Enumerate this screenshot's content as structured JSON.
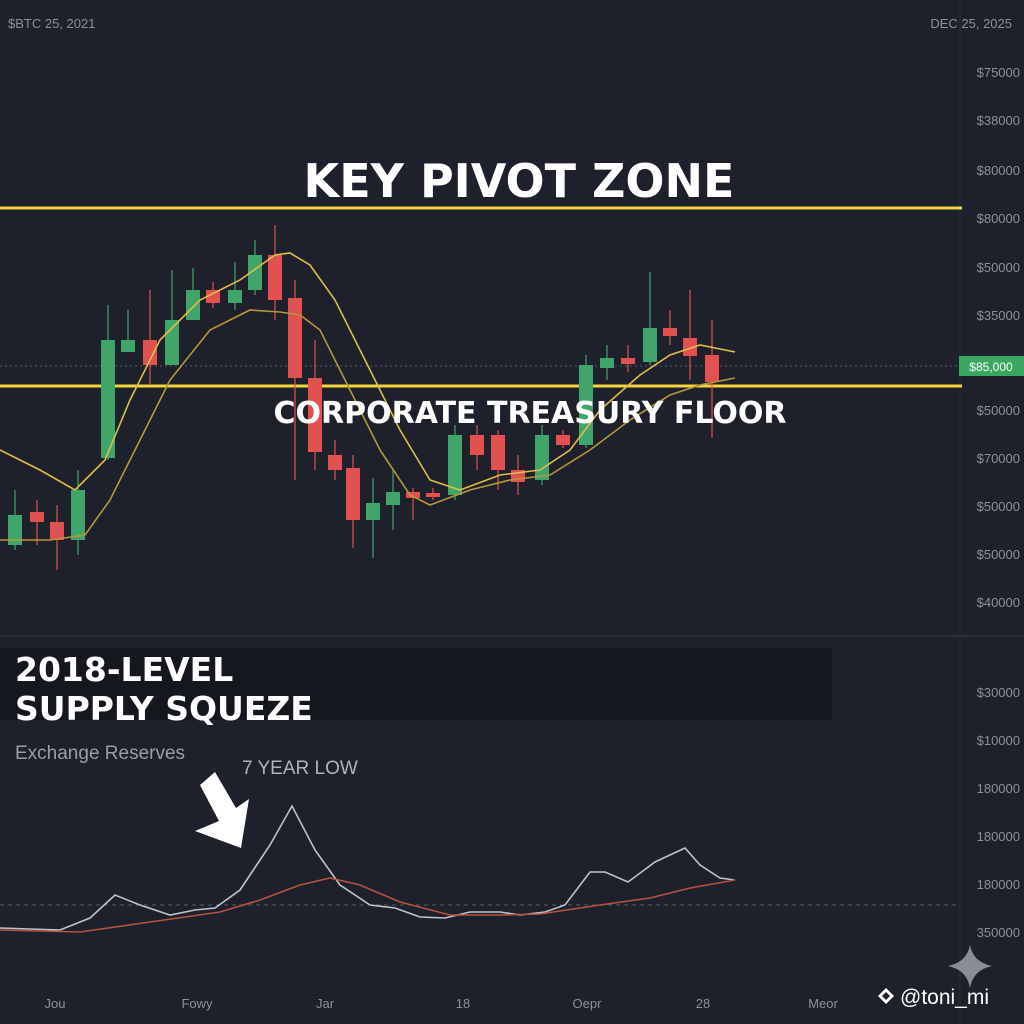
{
  "header": {
    "left_date": "$BTC 25, 2021",
    "right_date": "DEC 25, 2025"
  },
  "annotations": {
    "title": "KEY PIVOT ZONE",
    "floor": "CORPORATE TREASURY FLOOR"
  },
  "panel": {
    "title_lines": [
      "2018-LEVEL",
      "SUPPLY SQUEZE"
    ],
    "subtitle": "Exchange Reserves",
    "callout": "7 YEAR LOW"
  },
  "price_axis": [
    "$75000",
    "$38000",
    "$80000",
    "$80000",
    "$50000",
    "$35000",
    "$50000",
    "$70000",
    "$50000",
    "$50000",
    "$40000"
  ],
  "price_tag": "$85,000",
  "sub_axis": [
    "$30000",
    "$10000",
    "180000",
    "180000",
    "180000",
    "350000"
  ],
  "x_axis": [
    "Jou",
    "Fowy",
    "Jar",
    "18",
    "Oepr",
    "28",
    "Meor"
  ],
  "watermark": "@toni_mi"
}
